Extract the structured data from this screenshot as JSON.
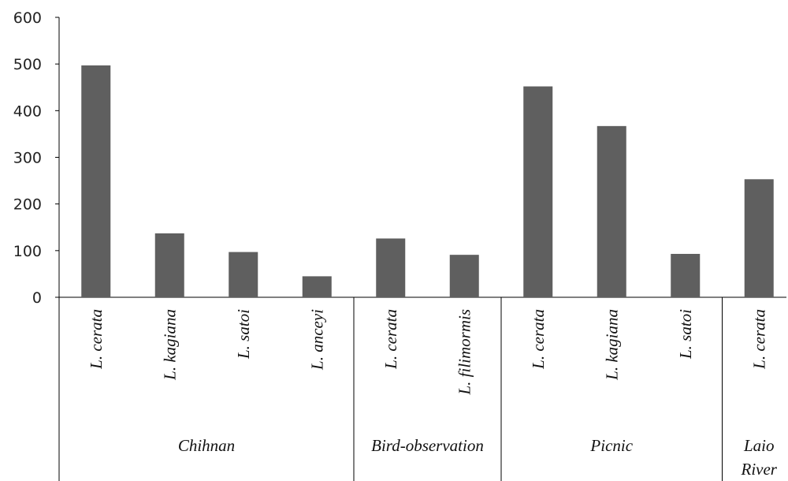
{
  "chart_data": {
    "type": "bar",
    "title": "",
    "xlabel": "",
    "ylabel": "",
    "ylim": [
      0,
      600
    ],
    "yticks": [
      0,
      100,
      200,
      300,
      400,
      500,
      600
    ],
    "grid": false,
    "legend": "none",
    "bar_color": "#5f5f5f",
    "categories": [
      "L. cerata",
      "L. kagiana",
      "L. satoi",
      "L. anceyi",
      "L. cerata",
      "L. filimormis",
      "L. cerata",
      "L. kagiana",
      "L. satoi",
      "L. cerata"
    ],
    "values": [
      497,
      137,
      97,
      45,
      126,
      91,
      452,
      367,
      93,
      253
    ],
    "groups": [
      {
        "label": [
          "Chihnan"
        ],
        "count": 4
      },
      {
        "label": [
          "Bird-observation"
        ],
        "count": 2
      },
      {
        "label": [
          "Picnic"
        ],
        "count": 3
      },
      {
        "label": [
          "Laio",
          "River"
        ],
        "count": 1
      }
    ]
  }
}
